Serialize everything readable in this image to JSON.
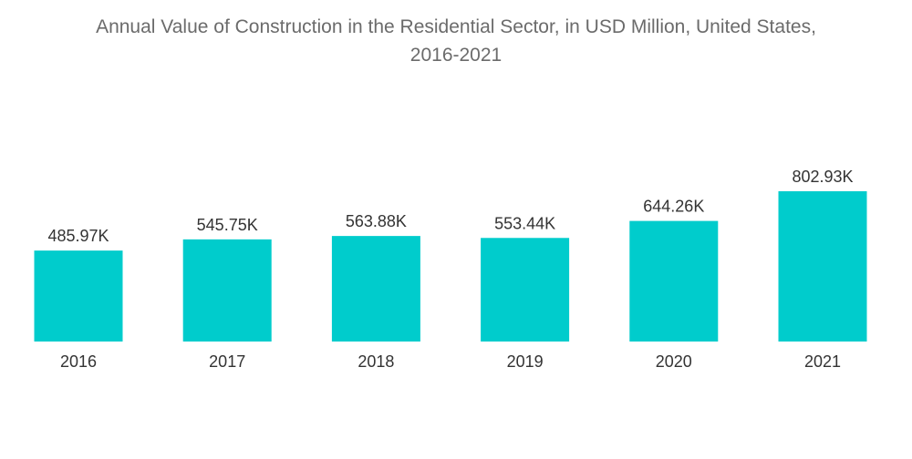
{
  "chart_data": {
    "type": "bar",
    "title_line1": "Annual Value of Construction in the Residential Sector, in USD Million, United States,",
    "title_line2": "2016-2021",
    "categories": [
      "2016",
      "2017",
      "2018",
      "2019",
      "2020",
      "2021"
    ],
    "values": [
      485.97,
      545.75,
      563.88,
      553.44,
      644.26,
      802.93
    ],
    "value_labels": [
      "485.97K",
      "545.75K",
      "563.88K",
      "553.44K",
      "644.26K",
      "802.93K"
    ],
    "xlabel": "",
    "ylabel": "",
    "ylim": [
      0,
      1000
    ],
    "grid": false,
    "legend": "none",
    "bar_color": "#00cccc"
  }
}
